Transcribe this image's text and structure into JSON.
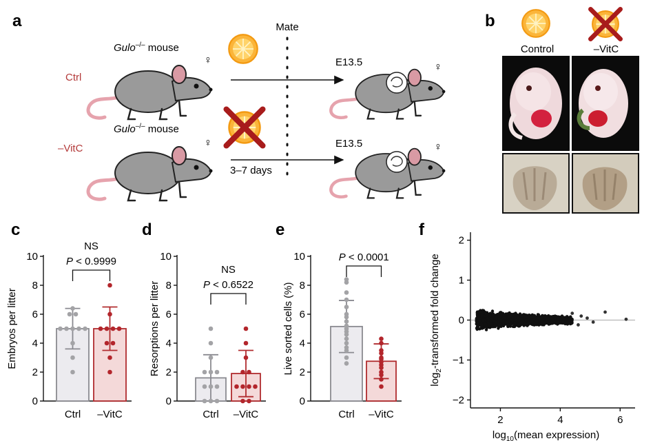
{
  "colors": {
    "ctrl_bar": "#ecebef",
    "ctrl_edge": "#8a8a90",
    "ctrl_dot": "#a3a3a6",
    "vitc_bar": "#f4d9d9",
    "vitc_edge": "#b02b2e",
    "vitc_dot": "#b3262c",
    "label_red": "#b33a3a",
    "mouse_body": "#999999",
    "tail": "#e6a3ad",
    "orange": "#f7a21b",
    "cross": "#a81c1c"
  },
  "panel_a": {
    "letter": "a",
    "mate_label": "Mate",
    "rows": [
      {
        "group": "Ctrl",
        "mouse_label_main": "Gulo",
        "mouse_label_sup": "–/–",
        "mouse_label_rest": " mouse",
        "sex": "♀",
        "target_label": "E13.5",
        "target_sex": "♀",
        "arrow_label": ""
      },
      {
        "group": "–VitC",
        "mouse_label_main": "Gulo",
        "mouse_label_sup": "–/–",
        "mouse_label_rest": " mouse",
        "sex": "♀",
        "target_label": "E13.5",
        "target_sex": "♀",
        "arrow_label": "3–7 days"
      }
    ],
    "icons": [
      "orange-slice-icon",
      "crossed-orange-icon",
      "mouse-icon",
      "pregnant-mouse-icon"
    ]
  },
  "panel_b": {
    "letter": "b",
    "columns": [
      {
        "label": "Control",
        "icon": "orange-slice-icon"
      },
      {
        "label": "–VitC",
        "icon": "crossed-orange-icon"
      }
    ],
    "rows": [
      "embryo-photo",
      "limb-photo"
    ]
  },
  "chart_data": [
    {
      "panel": "c",
      "type": "bar",
      "categories": [
        "Ctrl",
        "–VitC"
      ],
      "means": [
        5.0,
        5.0
      ],
      "sd": [
        1.4,
        1.5
      ],
      "points": [
        [
          6.4,
          6.0,
          6.0,
          5.0,
          5.0,
          5.0,
          5.0,
          5.0,
          4.0,
          3.0,
          2.0
        ],
        [
          8.0,
          6.0,
          5.0,
          5.0,
          5.0,
          5.0,
          4.0,
          4.0,
          3.0,
          2.0
        ]
      ],
      "ylabel": "Embryos per litter",
      "ylim": [
        0,
        10
      ],
      "yticks": [
        0,
        2,
        4,
        6,
        8,
        10
      ],
      "annotation": {
        "line1": "NS",
        "line2_italic": "P",
        "line2_rest": " < 0.9999"
      }
    },
    {
      "panel": "d",
      "type": "bar",
      "categories": [
        "Ctrl",
        "–VitC"
      ],
      "means": [
        1.6,
        1.9
      ],
      "sd": [
        1.6,
        1.6
      ],
      "points": [
        [
          5.0,
          4.0,
          3.0,
          2.0,
          2.0,
          2.0,
          1.0,
          1.0,
          1.0,
          0.0,
          0.0,
          0.0
        ],
        [
          5.0,
          4.0,
          3.0,
          2.0,
          2.0,
          1.0,
          1.0,
          1.0,
          1.0,
          0.0,
          0.0
        ]
      ],
      "ylabel": "Resorptions per litter",
      "ylim": [
        0,
        10
      ],
      "yticks": [
        0,
        2,
        4,
        6,
        8,
        10
      ],
      "annotation": {
        "line1": "NS",
        "line2_italic": "P",
        "line2_rest": " < 0.6522"
      }
    },
    {
      "panel": "e",
      "type": "bar",
      "categories": [
        "Ctrl",
        "–VitC"
      ],
      "means": [
        5.15,
        2.75
      ],
      "sd": [
        1.8,
        1.2
      ],
      "points": [
        [
          8.4,
          8.2,
          7.5,
          7.0,
          6.5,
          6.0,
          5.8,
          5.5,
          5.2,
          5.0,
          4.8,
          4.6,
          4.3,
          4.0,
          3.7,
          3.5,
          3.0,
          2.6
        ],
        [
          4.3,
          4.0,
          3.5,
          3.3,
          3.0,
          2.9,
          2.7,
          2.5,
          2.3,
          2.0,
          1.8,
          1.5,
          1.0
        ]
      ],
      "ylabel": "Live sorted cells (%)",
      "ylim": [
        0,
        10
      ],
      "yticks": [
        0,
        2,
        4,
        6,
        8,
        10
      ],
      "annotation": {
        "line1": "",
        "line2_italic": "P",
        "line2_rest": " < 0.0001"
      }
    },
    {
      "panel": "f",
      "type": "scatter",
      "xlabel_main": "log",
      "xlabel_sub": "10",
      "xlabel_rest": "(mean expression)",
      "ylabel_main": "log",
      "ylabel_sub": "2",
      "ylabel_rest": "-transformed fold change",
      "xlim": [
        1,
        6.5
      ],
      "ylim": [
        -2.2,
        2.2
      ],
      "xticks": [
        2,
        4,
        6
      ],
      "yticks": [
        -2,
        -1,
        0,
        1,
        2
      ],
      "outliers": [
        [
          5.5,
          0.2
        ],
        [
          6.2,
          0.02
        ],
        [
          4.9,
          0.05
        ],
        [
          5.1,
          -0.05
        ],
        [
          4.7,
          0.1
        ],
        [
          4.6,
          -0.12
        ],
        [
          4.4,
          0.17
        ]
      ]
    }
  ]
}
